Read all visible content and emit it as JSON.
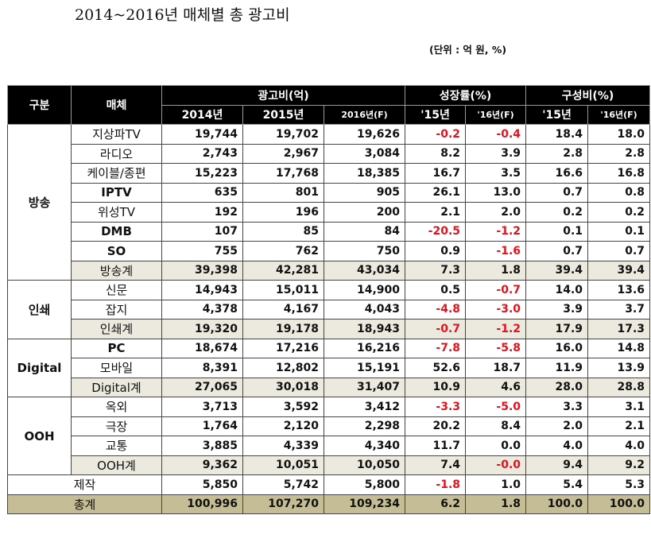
{
  "title": "2014~2016년 매체별 총 광고비",
  "unit": "(단위 : 억 원, %)",
  "header": {
    "group": "구분",
    "media": "매체",
    "ad_cost": "광고비(억)",
    "growth": "성장률(%)",
    "share": "구성비(%)",
    "y2014": "2014년",
    "y2015": "2015년",
    "y2016f": "2016년(F)",
    "g15": "'15년",
    "g16f": "'16년(F)",
    "s15": "'15년",
    "s16f": "'16년(F)"
  },
  "groups": [
    {
      "name": "방송",
      "rows": [
        {
          "media": "지상파TV",
          "v2014": "19,744",
          "v2015": "19,702",
          "v2016": "19,626",
          "g15": "-0.2",
          "g16": "-0.4",
          "s15": "18.4",
          "s16": "18.0"
        },
        {
          "media": "라디오",
          "v2014": "2,743",
          "v2015": "2,967",
          "v2016": "3,084",
          "g15": "8.2",
          "g16": "3.9",
          "s15": "2.8",
          "s16": "2.8"
        },
        {
          "media": "케이블/종편",
          "v2014": "15,223",
          "v2015": "17,768",
          "v2016": "18,385",
          "g15": "16.7",
          "g16": "3.5",
          "s15": "16.6",
          "s16": "16.8"
        },
        {
          "media": "IPTV",
          "v2014": "635",
          "v2015": "801",
          "v2016": "905",
          "g15": "26.1",
          "g16": "13.0",
          "s15": "0.7",
          "s16": "0.8"
        },
        {
          "media": "위성TV",
          "v2014": "192",
          "v2015": "196",
          "v2016": "200",
          "g15": "2.1",
          "g16": "2.0",
          "s15": "0.2",
          "s16": "0.2"
        },
        {
          "media": "DMB",
          "v2014": "107",
          "v2015": "85",
          "v2016": "84",
          "g15": "-20.5",
          "g16": "-1.2",
          "s15": "0.1",
          "s16": "0.1"
        },
        {
          "media": "SO",
          "v2014": "755",
          "v2015": "762",
          "v2016": "750",
          "g15": "0.9",
          "g16": "-1.6",
          "s15": "0.7",
          "s16": "0.7"
        },
        {
          "media": "방송계",
          "v2014": "39,398",
          "v2015": "42,281",
          "v2016": "43,034",
          "g15": "7.3",
          "g16": "1.8",
          "s15": "39.4",
          "s16": "39.4",
          "subtotal": true
        }
      ]
    },
    {
      "name": "인쇄",
      "rows": [
        {
          "media": "신문",
          "v2014": "14,943",
          "v2015": "15,011",
          "v2016": "14,900",
          "g15": "0.5",
          "g16": "-0.7",
          "s15": "14.0",
          "s16": "13.6"
        },
        {
          "media": "잡지",
          "v2014": "4,378",
          "v2015": "4,167",
          "v2016": "4,043",
          "g15": "-4.8",
          "g16": "-3.0",
          "s15": "3.9",
          "s16": "3.7"
        },
        {
          "media": "인쇄계",
          "v2014": "19,320",
          "v2015": "19,178",
          "v2016": "18,943",
          "g15": "-0.7",
          "g16": "-1.2",
          "s15": "17.9",
          "s16": "17.3",
          "subtotal": true
        }
      ]
    },
    {
      "name": "Digital",
      "rows": [
        {
          "media": "PC",
          "v2014": "18,674",
          "v2015": "17,216",
          "v2016": "16,216",
          "g15": "-7.8",
          "g16": "-5.8",
          "s15": "16.0",
          "s16": "14.8"
        },
        {
          "media": "모바일",
          "v2014": "8,391",
          "v2015": "12,802",
          "v2016": "15,191",
          "g15": "52.6",
          "g16": "18.7",
          "s15": "11.9",
          "s16": "13.9"
        },
        {
          "media": "Digital계",
          "v2014": "27,065",
          "v2015": "30,018",
          "v2016": "31,407",
          "g15": "10.9",
          "g16": "4.6",
          "s15": "28.0",
          "s16": "28.8",
          "subtotal": true
        }
      ]
    },
    {
      "name": "OOH",
      "rows": [
        {
          "media": "옥외",
          "v2014": "3,713",
          "v2015": "3,592",
          "v2016": "3,412",
          "g15": "-3.3",
          "g16": "-5.0",
          "s15": "3.3",
          "s16": "3.1"
        },
        {
          "media": "극장",
          "v2014": "1,764",
          "v2015": "2,120",
          "v2016": "2,298",
          "g15": "20.2",
          "g16": "8.4",
          "s15": "2.0",
          "s16": "2.1"
        },
        {
          "media": "교통",
          "v2014": "3,885",
          "v2015": "4,339",
          "v2016": "4,340",
          "g15": "11.7",
          "g16": "0.0",
          "s15": "4.0",
          "s16": "4.0"
        },
        {
          "media": "OOH계",
          "v2014": "9,362",
          "v2015": "10,051",
          "v2016": "10,050",
          "g15": "7.4",
          "g16": "-0.0",
          "s15": "9.4",
          "s16": "9.2",
          "subtotal": true
        }
      ]
    }
  ],
  "production": {
    "label": "제작",
    "v2014": "5,850",
    "v2015": "5,742",
    "v2016": "5,800",
    "g15": "-1.8",
    "g16": "1.0",
    "s15": "5.4",
    "s16": "5.3"
  },
  "total": {
    "label": "총계",
    "v2014": "100,996",
    "v2015": "107,270",
    "v2016": "109,234",
    "g15": "6.2",
    "g16": "1.8",
    "s15": "100.0",
    "s16": "100.0"
  },
  "colors": {
    "header_bg": "#000000",
    "subtotal_bg": "#eceadf",
    "total_bg": "#c5bd96",
    "negative": "#e0141e"
  }
}
